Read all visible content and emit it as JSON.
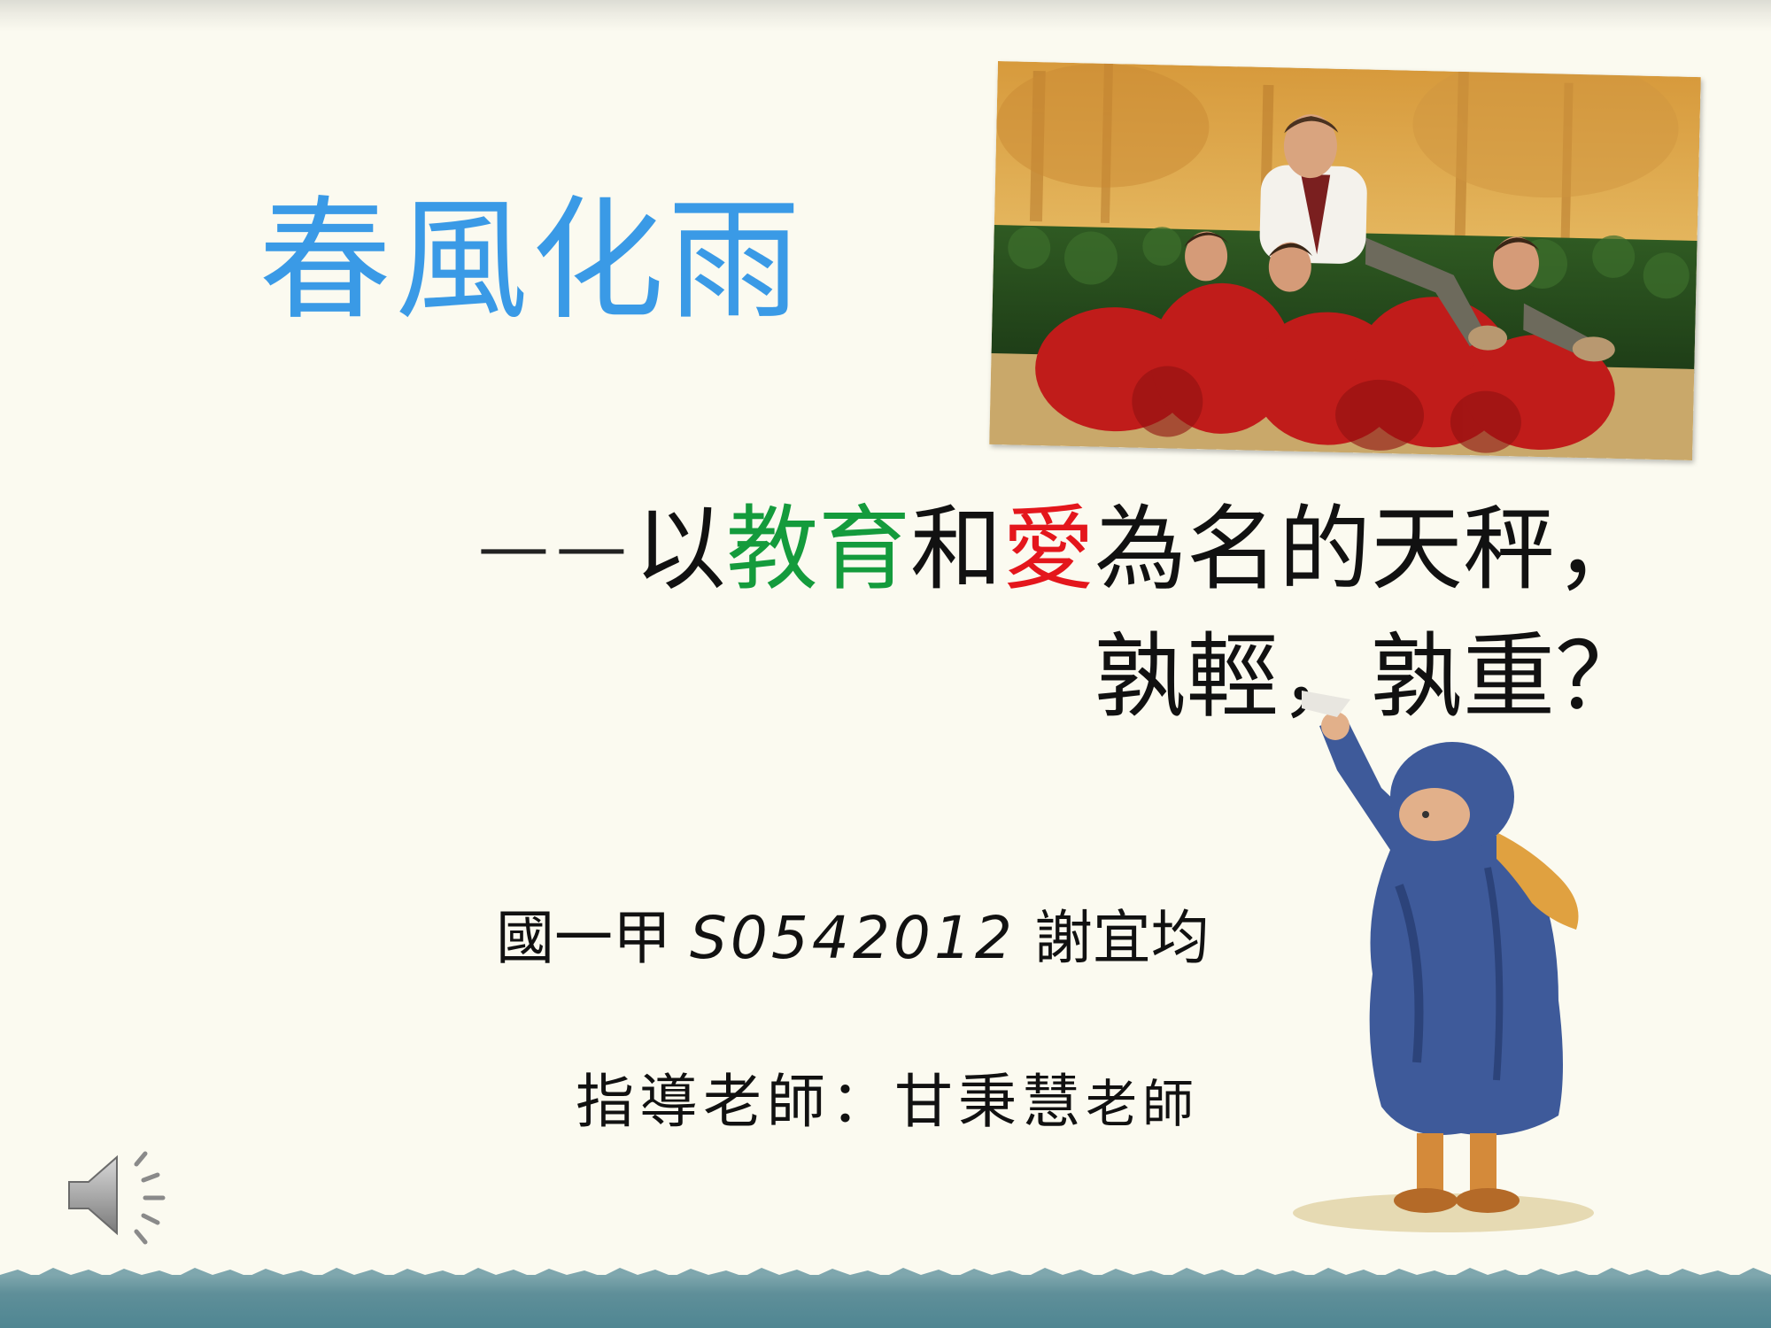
{
  "slide": {
    "title": "春風化雨",
    "subtitle": {
      "dash": "——",
      "part1": "以",
      "green_word": "教育",
      "part2": "和",
      "red_word": "愛",
      "part3": "為名的天秤，",
      "line2": "孰輕，孰重？"
    },
    "student": {
      "class": "國一甲",
      "id": "S0542012",
      "name": "謝宜均"
    },
    "teacher": {
      "label": "指導老師：甘秉慧",
      "suffix": "老師"
    }
  },
  "colors": {
    "title": "#3a9ae6",
    "green": "#149b3c",
    "red": "#e4161c",
    "background": "#fbfaf0"
  },
  "icons": {
    "audio": "speaker-icon"
  }
}
